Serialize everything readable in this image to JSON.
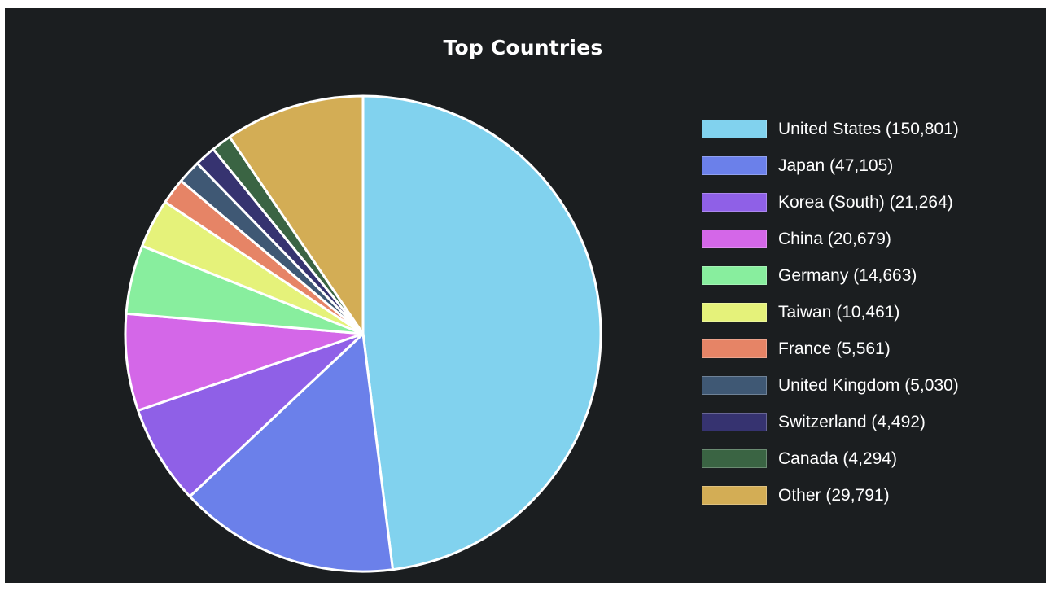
{
  "chart_data": {
    "type": "pie",
    "title": "Top Countries",
    "legend_position": "right",
    "slices": [
      {
        "label": "United States (150,801)",
        "name": "United States",
        "value": 150801,
        "color": "#81d2ee"
      },
      {
        "label": "Japan (47,105)",
        "name": "Japan",
        "value": 47105,
        "color": "#6b80ea"
      },
      {
        "label": "Korea (South) (21,264)",
        "name": "Korea (South)",
        "value": 21264,
        "color": "#8f60e7"
      },
      {
        "label": "China (20,679)",
        "name": "China",
        "value": 20679,
        "color": "#d467e8"
      },
      {
        "label": "Germany (14,663)",
        "name": "Germany",
        "value": 14663,
        "color": "#88ee9e"
      },
      {
        "label": "Taiwan (10,461)",
        "name": "Taiwan",
        "value": 10461,
        "color": "#e5f27a"
      },
      {
        "label": "France (5,561)",
        "name": "France",
        "value": 5561,
        "color": "#e68466"
      },
      {
        "label": "United Kingdom (5,030)",
        "name": "United Kingdom",
        "value": 5030,
        "color": "#3f5874"
      },
      {
        "label": "Switzerland (4,492)",
        "name": "Switzerland",
        "value": 4492,
        "color": "#363370"
      },
      {
        "label": "Canada (4,294)",
        "name": "Canada",
        "value": 4294,
        "color": "#3a6443"
      },
      {
        "label": "Other (29,791)",
        "name": "Other",
        "value": 29791,
        "color": "#d3ad55"
      }
    ]
  }
}
